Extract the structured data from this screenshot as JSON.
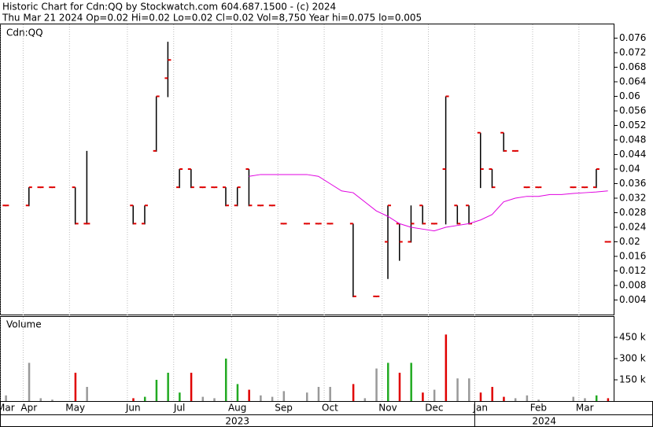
{
  "header": {
    "title": "Historic Chart for Cdn:QQ by Stockwatch.com 604.687.1500 - (c) 2024",
    "summary": "Thu Mar 21 2024  Op=0.02  Hi=0.02  Lo=0.02  Cl=0.02  Vol=8,750  Year hi=0.075  lo=0.005"
  },
  "chart_data": [
    {
      "type": "ohlc",
      "title": "Cdn:QQ",
      "categories": [
        "Mar",
        null,
        "Apr",
        null,
        null,
        null,
        "May",
        null,
        null,
        null,
        null,
        "Jun",
        null,
        null,
        null,
        "Jul",
        null,
        null,
        null,
        null,
        "Aug",
        null,
        null,
        null,
        "Sep",
        null,
        null,
        null,
        "Oct",
        null,
        null,
        null,
        null,
        "Nov",
        null,
        null,
        null,
        "Dec",
        null,
        null,
        null,
        "Jan",
        null,
        null,
        null,
        null,
        "Feb",
        null,
        null,
        null,
        "Mar",
        null,
        null
      ],
      "years": [
        {
          "label": "2023",
          "from": 0,
          "to": 40
        },
        {
          "label": "2024",
          "from": 41,
          "to": 52
        }
      ],
      "open": [
        0.03,
        null,
        0.03,
        0.035,
        0.035,
        null,
        0.035,
        0.025,
        null,
        null,
        null,
        0.03,
        0.025,
        0.045,
        0.065,
        0.035,
        0.04,
        0.035,
        0.035,
        0.035,
        0.03,
        0.04,
        0.03,
        0.03,
        0.025,
        null,
        0.025,
        0.025,
        0.025,
        null,
        0.025,
        null,
        0.005,
        0.02,
        0.025,
        0.02,
        0.03,
        0.025,
        0.04,
        0.03,
        0.03,
        0.05,
        0.04,
        0.05,
        0.045,
        0.035,
        0.035,
        null,
        null,
        0.035,
        0.035,
        0.035,
        0.02
      ],
      "high": [
        0.03,
        null,
        0.035,
        0.035,
        0.035,
        null,
        0.035,
        0.045,
        null,
        null,
        null,
        0.03,
        0.03,
        0.06,
        0.075,
        0.04,
        0.04,
        0.035,
        0.035,
        0.035,
        0.035,
        0.04,
        0.03,
        0.03,
        0.025,
        null,
        0.025,
        0.025,
        0.025,
        null,
        0.025,
        null,
        0.005,
        0.03,
        0.025,
        0.03,
        0.03,
        0.025,
        0.06,
        0.03,
        0.03,
        0.05,
        0.04,
        0.05,
        0.045,
        0.035,
        0.035,
        null,
        null,
        0.035,
        0.035,
        0.04,
        0.02
      ],
      "low": [
        0.03,
        null,
        0.03,
        0.035,
        0.035,
        null,
        0.025,
        0.025,
        null,
        null,
        null,
        0.025,
        0.025,
        0.045,
        0.06,
        0.035,
        0.035,
        0.035,
        0.035,
        0.03,
        0.03,
        0.03,
        0.03,
        0.03,
        0.025,
        null,
        0.025,
        0.025,
        0.025,
        null,
        0.005,
        null,
        0.005,
        0.01,
        0.015,
        0.02,
        0.025,
        0.025,
        0.025,
        0.025,
        0.025,
        0.035,
        0.035,
        0.045,
        0.045,
        0.035,
        0.035,
        null,
        null,
        0.035,
        0.035,
        0.035,
        0.02
      ],
      "close": [
        0.03,
        null,
        0.035,
        0.035,
        0.035,
        null,
        0.025,
        0.025,
        null,
        null,
        null,
        0.025,
        0.03,
        0.06,
        0.07,
        0.04,
        0.035,
        0.035,
        0.035,
        0.03,
        0.035,
        0.03,
        0.03,
        0.03,
        0.025,
        null,
        0.025,
        0.025,
        0.025,
        null,
        0.005,
        null,
        0.005,
        0.03,
        0.02,
        0.025,
        0.025,
        0.025,
        0.06,
        0.025,
        0.025,
        0.04,
        0.035,
        0.045,
        0.045,
        0.035,
        0.035,
        null,
        null,
        0.035,
        0.035,
        0.04,
        0.02
      ],
      "moving_average": {
        "color": "#e000e0",
        "values": [
          null,
          null,
          null,
          null,
          null,
          null,
          null,
          null,
          null,
          null,
          null,
          null,
          null,
          null,
          null,
          null,
          null,
          null,
          null,
          null,
          null,
          0.038,
          0.0385,
          0.0385,
          0.0385,
          0.0385,
          0.0385,
          0.038,
          0.036,
          0.034,
          0.0335,
          0.031,
          0.0285,
          0.027,
          0.025,
          0.024,
          0.0235,
          0.023,
          0.024,
          0.0245,
          0.025,
          0.026,
          0.0275,
          0.031,
          0.032,
          0.0325,
          0.0325,
          0.033,
          0.033,
          0.0333,
          0.0335,
          0.0337,
          0.034
        ]
      },
      "ylim": [
        0,
        0.08
      ],
      "yticks": [
        0.004,
        0.008,
        0.012,
        0.016,
        0.02,
        0.024,
        0.028,
        0.032,
        0.036,
        0.04,
        0.044,
        0.048,
        0.052,
        0.056,
        0.06,
        0.064,
        0.068,
        0.072,
        0.076
      ]
    },
    {
      "type": "bar",
      "title": "Volume",
      "values": [
        40000,
        null,
        270000,
        20000,
        10000,
        null,
        200000,
        100000,
        null,
        null,
        null,
        20000,
        30000,
        150000,
        200000,
        60000,
        200000,
        30000,
        20000,
        300000,
        120000,
        80000,
        40000,
        30000,
        70000,
        null,
        60000,
        100000,
        100000,
        null,
        120000,
        20000,
        230000,
        270000,
        200000,
        270000,
        60000,
        80000,
        470000,
        160000,
        160000,
        60000,
        100000,
        30000,
        20000,
        40000,
        10000,
        null,
        null,
        30000,
        20000,
        40000,
        20000
      ],
      "colors": [
        "#999999",
        null,
        "#999999",
        "#999999",
        "#999999",
        null,
        "#e00000",
        "#999999",
        null,
        null,
        null,
        "#e00000",
        "#22aa22",
        "#22aa22",
        "#22aa22",
        "#22aa22",
        "#e00000",
        "#999999",
        "#999999",
        "#22aa22",
        "#22aa22",
        "#e00000",
        "#999999",
        "#999999",
        "#999999",
        null,
        "#999999",
        "#999999",
        "#999999",
        null,
        "#e00000",
        "#999999",
        "#999999",
        "#22aa22",
        "#e00000",
        "#22aa22",
        "#e00000",
        "#999999",
        "#e00000",
        "#999999",
        "#999999",
        "#e00000",
        "#e00000",
        "#e00000",
        "#999999",
        "#999999",
        "#999999",
        null,
        null,
        "#999999",
        "#999999",
        "#22aa22",
        "#e00000"
      ],
      "ylim": [
        0,
        600000
      ],
      "yticks": [
        {
          "value": 150000,
          "label": "150 k"
        },
        {
          "value": 300000,
          "label": "300 k"
        },
        {
          "value": 450000,
          "label": "450 k"
        }
      ]
    }
  ]
}
